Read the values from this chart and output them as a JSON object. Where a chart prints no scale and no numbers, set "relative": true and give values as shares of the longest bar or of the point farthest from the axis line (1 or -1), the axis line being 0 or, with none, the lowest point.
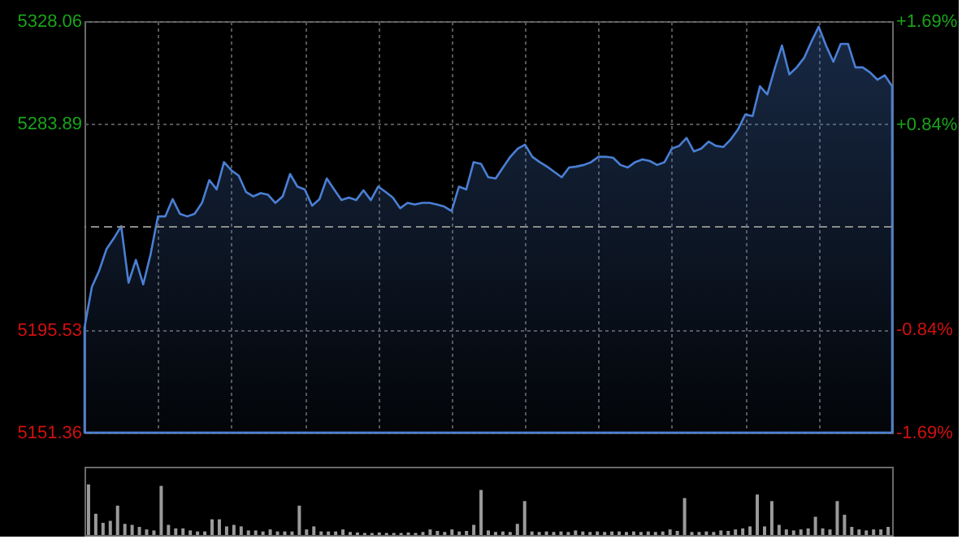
{
  "chart_data": [
    {
      "type": "area",
      "grid": true,
      "categories": [
        null,
        null,
        null,
        null,
        null,
        null,
        null,
        null,
        null,
        null,
        null,
        null,
        null,
        null,
        null,
        null,
        null,
        null,
        null,
        null,
        null,
        null,
        null,
        null,
        null,
        null,
        null,
        null,
        null,
        null,
        null,
        null,
        null,
        null,
        null,
        null,
        null,
        null,
        null,
        null,
        null,
        null,
        null,
        null,
        null,
        null,
        null,
        null,
        null,
        null,
        null,
        null,
        null,
        null,
        null,
        null,
        null,
        null,
        null,
        null,
        null,
        null,
        null,
        null,
        null,
        null,
        null,
        null,
        null,
        null,
        null,
        null,
        null,
        null,
        null,
        null,
        null,
        null,
        null,
        null,
        null,
        null,
        null,
        null,
        null,
        null,
        null,
        null,
        null,
        null,
        null,
        null,
        null,
        null,
        null,
        null,
        null,
        null,
        null,
        null,
        null,
        null,
        null,
        null,
        null,
        null,
        null,
        null,
        null,
        null,
        null
      ],
      "series": [
        {
          "color": "#4a7fd4",
          "values": [
            5196.4,
            5213.9,
            5220.9,
            5230.2,
            5234.8,
            5240.0,
            5215.7,
            5225.5,
            5215.0,
            5227.9,
            5244.2,
            5244.2,
            5251.6,
            5245.3,
            5244.2,
            5245.3,
            5250.0,
            5259.8,
            5255.8,
            5267.5,
            5264.0,
            5261.7,
            5254.7,
            5252.8,
            5254.2,
            5253.5,
            5250.0,
            5252.8,
            5262.4,
            5257.0,
            5255.8,
            5248.8,
            5251.6,
            5260.5,
            5255.8,
            5251.2,
            5252.3,
            5251.2,
            5255.4,
            5251.2,
            5257.0,
            5254.7,
            5252.3,
            5247.7,
            5250.0,
            5249.3,
            5250.0,
            5250.0,
            5249.3,
            5248.4,
            5246.5,
            5257.0,
            5255.8,
            5267.5,
            5266.8,
            5261.0,
            5260.5,
            5265.2,
            5269.8,
            5273.3,
            5275.0,
            5269.8,
            5267.5,
            5265.6,
            5263.3,
            5261.0,
            5265.2,
            5265.6,
            5266.3,
            5267.5,
            5269.8,
            5269.8,
            5269.4,
            5266.3,
            5265.2,
            5267.5,
            5268.7,
            5268.0,
            5266.3,
            5267.5,
            5273.3,
            5274.5,
            5277.9,
            5272.1,
            5273.3,
            5276.3,
            5274.5,
            5274.0,
            5277.2,
            5281.5,
            5288.0,
            5287.3,
            5300.1,
            5296.6,
            5307.6,
            5317.6,
            5305.2,
            5308.2,
            5312.2,
            5319.2,
            5325.7,
            5317.6,
            5310.6,
            5318.3,
            5318.3,
            5308.2,
            5308.2,
            5306.0,
            5302.9,
            5304.8,
            5300.1
          ]
        }
      ],
      "ylim": [
        5151.36,
        5328.06
      ],
      "yticks": [
        5151.36,
        5195.53,
        5283.89,
        5328.06
      ],
      "y2lim": [
        -1.69,
        1.69
      ],
      "y2ticks": [
        {
          "value": -1.69,
          "label": "-1.69%"
        },
        {
          "value": -0.84,
          "label": "-0.84%"
        },
        {
          "value": 0.84,
          "label": "+0.84%"
        },
        {
          "value": 1.69,
          "label": "+1.69%"
        }
      ],
      "ref_lines": [
        {
          "axis": "y2",
          "value": 0,
          "color": "#8a8a8a",
          "line_style": "dashed"
        }
      ]
    },
    {
      "type": "bar",
      "relative": true,
      "categories": [
        null,
        null,
        null,
        null,
        null,
        null,
        null,
        null,
        null,
        null,
        null,
        null,
        null,
        null,
        null,
        null,
        null,
        null,
        null,
        null,
        null,
        null,
        null,
        null,
        null,
        null,
        null,
        null,
        null,
        null,
        null,
        null,
        null,
        null,
        null,
        null,
        null,
        null,
        null,
        null,
        null,
        null,
        null,
        null,
        null,
        null,
        null,
        null,
        null,
        null,
        null,
        null,
        null,
        null,
        null,
        null,
        null,
        null,
        null,
        null,
        null,
        null,
        null,
        null,
        null,
        null,
        null,
        null,
        null,
        null,
        null,
        null,
        null,
        null,
        null,
        null,
        null,
        null,
        null,
        null,
        null,
        null,
        null,
        null,
        null,
        null,
        null,
        null,
        null,
        null,
        null,
        null,
        null,
        null,
        null,
        null,
        null,
        null,
        null,
        null,
        null,
        null,
        null,
        null,
        null,
        null,
        null,
        null,
        null,
        null,
        null
      ],
      "series": [
        {
          "color": "#9a9a9a",
          "values": [
            1.0,
            0.42,
            0.24,
            0.28,
            0.58,
            0.22,
            0.2,
            0.16,
            0.11,
            0.09,
            0.97,
            0.2,
            0.13,
            0.13,
            0.09,
            0.07,
            0.07,
            0.31,
            0.31,
            0.17,
            0.2,
            0.17,
            0.09,
            0.09,
            0.07,
            0.11,
            0.07,
            0.07,
            0.07,
            0.58,
            0.11,
            0.17,
            0.07,
            0.07,
            0.07,
            0.11,
            0.06,
            0.05,
            0.04,
            0.04,
            0.05,
            0.04,
            0.04,
            0.04,
            0.05,
            0.04,
            0.06,
            0.11,
            0.08,
            0.06,
            0.11,
            0.07,
            0.08,
            0.2,
            0.89,
            0.09,
            0.06,
            0.07,
            0.06,
            0.22,
            0.67,
            0.07,
            0.06,
            0.07,
            0.06,
            0.07,
            0.06,
            0.09,
            0.07,
            0.06,
            0.07,
            0.06,
            0.07,
            0.07,
            0.06,
            0.07,
            0.06,
            0.07,
            0.06,
            0.07,
            0.11,
            0.08,
            0.73,
            0.06,
            0.06,
            0.07,
            0.06,
            0.09,
            0.08,
            0.11,
            0.13,
            0.17,
            0.8,
            0.17,
            0.67,
            0.2,
            0.11,
            0.09,
            0.11,
            0.13,
            0.36,
            0.13,
            0.11,
            0.67,
            0.4,
            0.16,
            0.11,
            0.09,
            0.11,
            0.11,
            0.16
          ]
        }
      ]
    }
  ]
}
